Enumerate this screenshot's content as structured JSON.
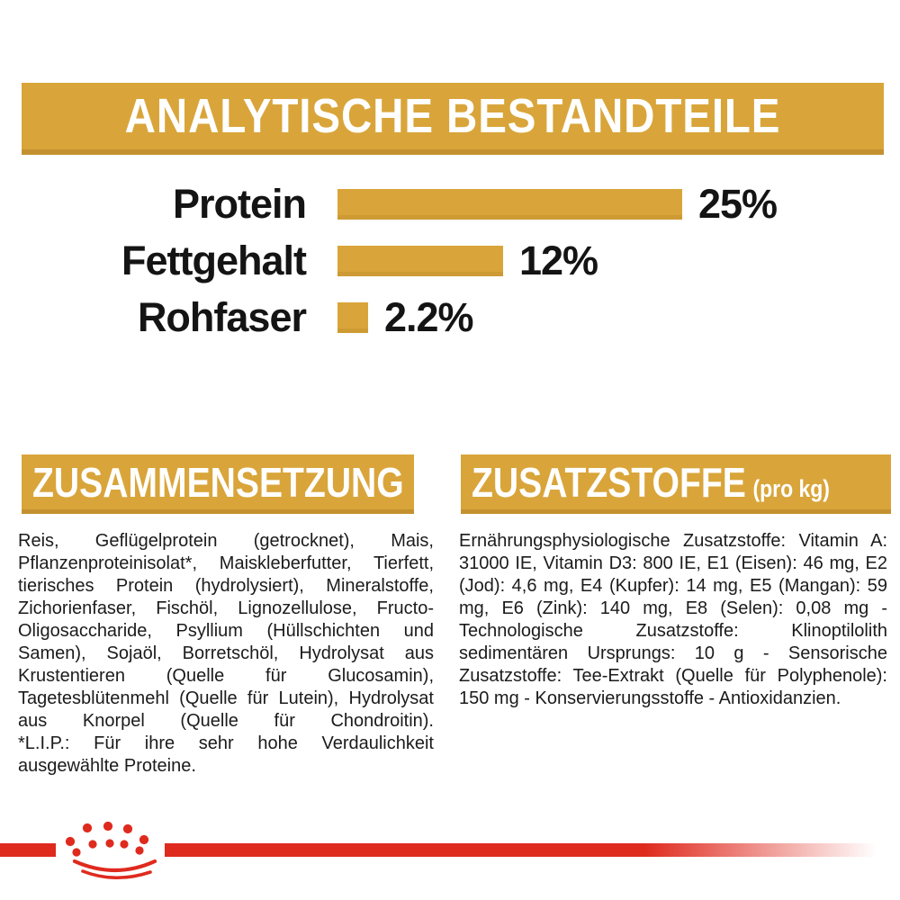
{
  "banners": {
    "analytical": "ANALYTISCHE BESTANDTEILE"
  },
  "chart_data": {
    "type": "bar",
    "orientation": "horizontal",
    "title": "ANALYTISCHE BESTANDTEILE",
    "categories": [
      "Protein",
      "Fettgehalt",
      "Rohfaser"
    ],
    "values": [
      25,
      12,
      2.2
    ],
    "value_labels": [
      "25%",
      "12%",
      "2.2%"
    ],
    "unit": "%",
    "xlim": [
      0,
      25
    ],
    "grid": false,
    "legend": "none",
    "bar_color": "#D9A53A"
  },
  "sections": {
    "composition": {
      "heading": "ZUSAMMENSETZUNG",
      "body": "Reis, Geflügelprotein (getrocknet), Mais, Pflanzenproteinisolat*, Maiskleberfutter, Tierfett, tierisches Protein (hydrolysiert), Mineralstoffe, Zichorienfaser, Fischöl, Lignozellulose, Fructo-Oligosaccharide, Psyllium (Hüllschichten und Samen), Sojaöl, Borretschöl, Hydrolysat aus Krustentieren (Quelle für Glucosamin), Tagetesblütenmehl (Quelle für Lutein), Hydrolysat aus Knorpel (Quelle für Chondroitin).",
      "footnote": "*L.I.P.: Für ihre sehr hohe Verdaulichkeit ausgewählte Proteine."
    },
    "additives": {
      "heading": "ZUSATZSTOFFE",
      "heading_suffix": "(pro kg)",
      "body": "Ernährungsphysiologische Zusatzstoffe: Vitamin A: 31000 IE, Vitamin D3: 800 IE, E1 (Eisen): 46 mg, E2 (Jod): 4,6 mg, E4 (Kupfer): 14 mg, E5 (Mangan): 59 mg, E6 (Zink): 140 mg, E8 (Selen): 0,08 mg - Technologische Zusatzstoffe: Klinoptilolith sedimentären Ursprungs: 10 g - Sensorische Zusatzstoffe: Tee-Extrakt (Quelle für Polyphenole): 150 mg - Konservierungsstoffe - Antioxidanzien."
    }
  },
  "footer": {
    "logo_icon": "royal-canin-crown-logo",
    "rule_color": "#DF2A1E"
  },
  "colors": {
    "gold": "#D9A53A",
    "gold_dark": "#C3912F",
    "red": "#DF2A1E",
    "text_dark": "#1B1B1B",
    "banner_text": "#FFFFFF"
  }
}
